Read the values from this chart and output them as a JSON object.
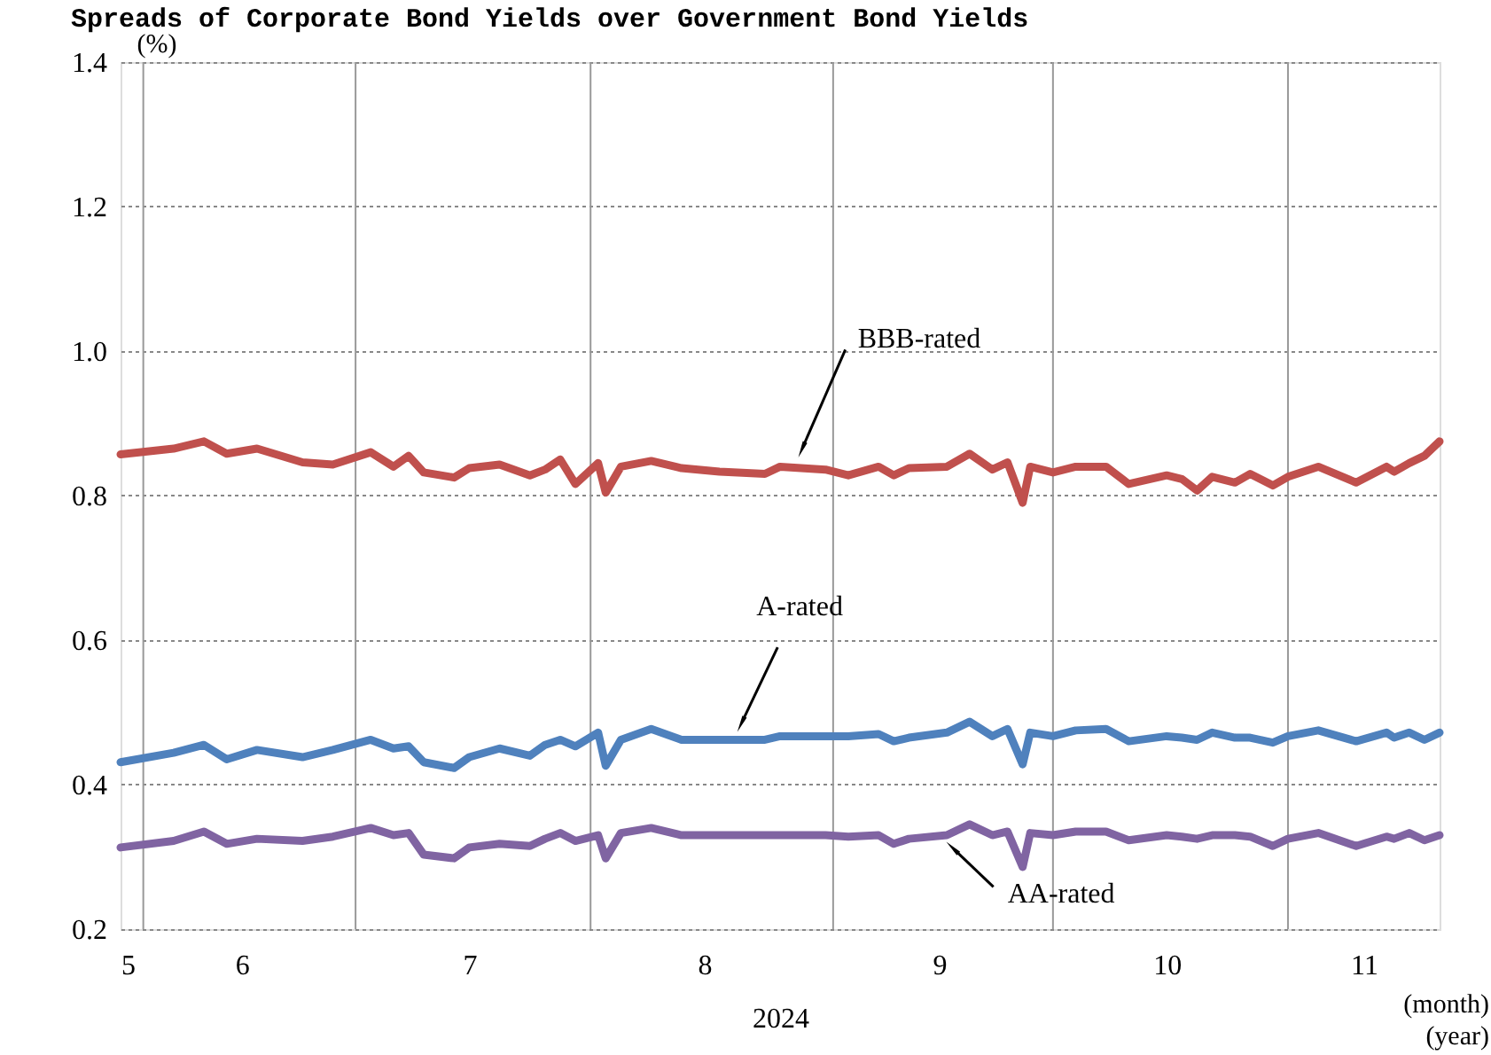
{
  "chart_data": {
    "type": "line",
    "title": "Spreads of Corporate Bond Yields over Government Bond Yields",
    "xlabel": "2024",
    "ylabel": "(%)",
    "annotations": [
      {
        "text": "BBB-rated",
        "x": "2024-08-29",
        "y": 0.867
      },
      {
        "text": "A-rated",
        "x": "2024-08-21",
        "y": 0.487
      },
      {
        "text": "AA-rated",
        "x": "2024-09-18",
        "y": 0.31
      },
      "(month)",
      "(year)"
    ],
    "x": [
      "2024-05-31",
      "2024-06-07",
      "2024-06-11",
      "2024-06-14",
      "2024-06-18",
      "2024-06-24",
      "2024-06-28",
      "2024-07-03",
      "2024-07-06",
      "2024-07-08",
      "2024-07-10",
      "2024-07-14",
      "2024-07-16",
      "2024-07-20",
      "2024-07-24",
      "2024-07-26",
      "2024-07-28",
      "2024-07-30",
      "2024-08-02",
      "2024-08-03",
      "2024-08-05",
      "2024-08-09",
      "2024-08-13",
      "2024-08-18",
      "2024-08-24",
      "2024-08-26",
      "2024-09-01",
      "2024-09-04",
      "2024-09-08",
      "2024-09-10",
      "2024-09-12",
      "2024-09-17",
      "2024-09-20",
      "2024-09-23",
      "2024-09-25",
      "2024-09-27",
      "2024-09-28",
      "2024-10-01",
      "2024-10-04",
      "2024-10-08",
      "2024-10-11",
      "2024-10-16",
      "2024-10-18",
      "2024-10-20",
      "2024-10-22",
      "2024-10-25",
      "2024-10-27",
      "2024-10-30",
      "2024-11-01",
      "2024-11-05",
      "2024-11-10",
      "2024-11-14",
      "2024-11-15",
      "2024-11-17",
      "2024-11-19",
      "2024-11-21"
    ],
    "series": [
      {
        "color": "#c0504d",
        "values": [
          0.857,
          0.865,
          0.875,
          0.858,
          0.865,
          0.846,
          0.843,
          0.86,
          0.84,
          0.855,
          0.832,
          0.825,
          0.838,
          0.843,
          0.828,
          0.836,
          0.85,
          0.816,
          0.845,
          0.804,
          0.84,
          0.848,
          0.838,
          0.833,
          0.83,
          0.84,
          0.836,
          0.828,
          0.84,
          0.828,
          0.838,
          0.84,
          0.858,
          0.836,
          0.846,
          0.79,
          0.84,
          0.832,
          0.84,
          0.84,
          0.816,
          0.828,
          0.823,
          0.807,
          0.826,
          0.818,
          0.83,
          0.814,
          0.826,
          0.84,
          0.818,
          0.84,
          0.833,
          0.845,
          0.855,
          0.875
        ]
      },
      {
        "color": "#4f81bd",
        "values": [
          0.431,
          0.444,
          0.455,
          0.435,
          0.448,
          0.438,
          0.448,
          0.462,
          0.45,
          0.453,
          0.431,
          0.423,
          0.438,
          0.45,
          0.44,
          0.455,
          0.462,
          0.453,
          0.472,
          0.426,
          0.462,
          0.477,
          0.462,
          0.462,
          0.462,
          0.467,
          0.467,
          0.467,
          0.47,
          0.46,
          0.465,
          0.472,
          0.487,
          0.467,
          0.477,
          0.428,
          0.472,
          0.467,
          0.475,
          0.477,
          0.46,
          0.467,
          0.465,
          0.462,
          0.472,
          0.465,
          0.465,
          0.458,
          0.467,
          0.475,
          0.46,
          0.472,
          0.465,
          0.472,
          0.462,
          0.472
        ]
      },
      {
        "color": "#8064a2",
        "values": [
          0.313,
          0.322,
          0.335,
          0.318,
          0.325,
          0.322,
          0.328,
          0.34,
          0.33,
          0.333,
          0.303,
          0.298,
          0.313,
          0.318,
          0.315,
          0.325,
          0.333,
          0.322,
          0.33,
          0.298,
          0.333,
          0.34,
          0.33,
          0.33,
          0.33,
          0.33,
          0.33,
          0.328,
          0.33,
          0.318,
          0.325,
          0.33,
          0.345,
          0.33,
          0.335,
          0.286,
          0.333,
          0.33,
          0.335,
          0.335,
          0.323,
          0.33,
          0.328,
          0.325,
          0.33,
          0.33,
          0.328,
          0.315,
          0.325,
          0.333,
          0.315,
          0.328,
          0.325,
          0.333,
          0.323,
          0.33
        ]
      }
    ],
    "xlim": [
      "2024-05-31",
      "2024-11-21"
    ],
    "xticks": [
      {
        "value": "2024-05-31",
        "label": "5"
      },
      {
        "value": "2024-06-03",
        "label": null
      },
      {
        "value": "2024-06-16",
        "label": "6"
      },
      {
        "value": "2024-07-01",
        "label": null
      },
      {
        "value": "2024-07-16",
        "label": "7"
      },
      {
        "value": "2024-08-01",
        "label": null
      },
      {
        "value": "2024-08-16",
        "label": "8"
      },
      {
        "value": "2024-09-02",
        "label": null
      },
      {
        "value": "2024-09-16",
        "label": "9"
      },
      {
        "value": "2024-10-01",
        "label": null
      },
      {
        "value": "2024-10-16",
        "label": "10"
      },
      {
        "value": "2024-11-01",
        "label": null
      },
      {
        "value": "2024-11-11",
        "label": "11"
      }
    ],
    "ylim": [
      0.2,
      1.4
    ],
    "yticks": [
      0.2,
      0.4,
      0.6,
      0.8,
      {
        "value": 1,
        "label": "1.0"
      },
      1.2,
      1.4
    ],
    "grid": true,
    "legend": false,
    "marker": "none",
    "line_style": "solid"
  }
}
